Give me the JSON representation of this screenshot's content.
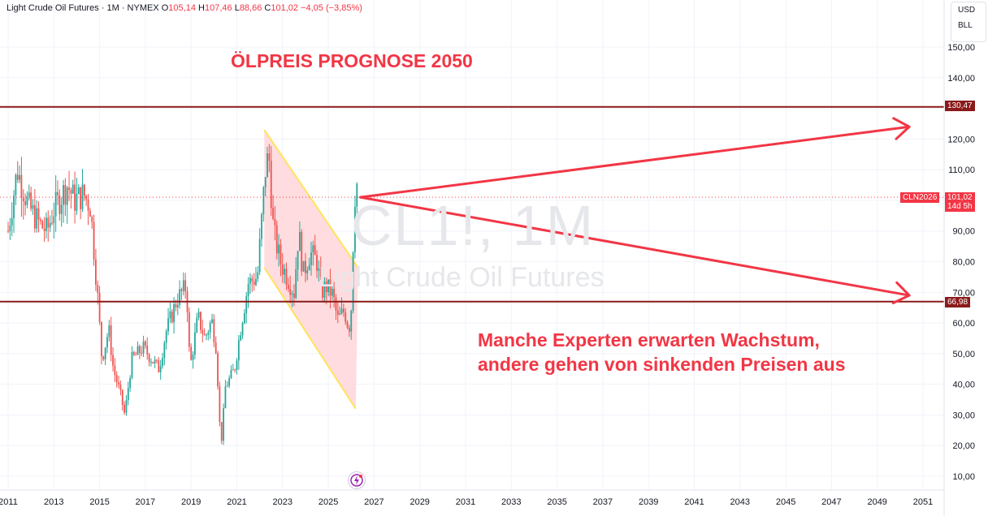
{
  "header": {
    "symbol_text": "Light Crude Oil Futures · 1M · NYMEX",
    "o_label": "O",
    "o_value": "105,14",
    "h_label": "H",
    "h_value": "107,46",
    "l_label": "L",
    "l_value": "88,66",
    "c_label": "C",
    "c_value": "101,02",
    "change": "−4,05 (−3,85%)"
  },
  "unit_box": {
    "currency": "USD",
    "unit": "BLL"
  },
  "watermark": {
    "symbol": "CL1!, 1M",
    "name": "Light Crude Oil Futures"
  },
  "annotations": {
    "title": "ÖLPREIS PROGNOSE 2050",
    "body_line1": "Manche Experten erwarten Wachstum,",
    "body_line2": "andere gehen von sinkenden Preisen aus"
  },
  "price_labels": {
    "upper_level": "130,47",
    "lower_level": "66,98",
    "contract": "CLN2026",
    "last_price": "101,02",
    "countdown": "14d 5h"
  },
  "colors": {
    "up": "#26a69a",
    "down": "#ef5350",
    "level_line": "#8b1a1a",
    "annotation": "#f23645",
    "channel_fill": "#ffd6d9",
    "channel_border": "#ffe45c"
  },
  "chart_data": {
    "type": "candlestick",
    "interval": "1M",
    "x_ticks": [
      "2011",
      "2013",
      "2015",
      "2017",
      "2019",
      "2021",
      "2023",
      "2025",
      "2027",
      "2029",
      "2031",
      "2033",
      "2035",
      "2037",
      "2039",
      "2041",
      "2043",
      "2045",
      "2047",
      "2049",
      "2051"
    ],
    "y_ticks": [
      10,
      20,
      30,
      40,
      50,
      60,
      70,
      80,
      90,
      100,
      110,
      120,
      130,
      140,
      150
    ],
    "y_ticks_labels": [
      "10,00",
      "20,00",
      "30,00",
      "40,00",
      "50,00",
      "60,00",
      "70,00",
      "80,00",
      "90,00",
      "110,00",
      "120,00",
      "140,00",
      "150,00"
    ],
    "ylim": [
      5,
      158
    ],
    "xlim": [
      2011.0,
      2052.0
    ],
    "horizontal_levels": [
      130.47,
      66.98
    ],
    "last_price": 101.02,
    "channel": {
      "top_start": [
        2022.2,
        123
      ],
      "top_end": [
        2026.3,
        78
      ],
      "bottom_start": [
        2022.2,
        78
      ],
      "bottom_end": [
        2026.2,
        32
      ]
    },
    "projection_arrows": [
      {
        "from": [
          2026.4,
          101.0
        ],
        "to": [
          2050.4,
          124.0
        ]
      },
      {
        "from": [
          2026.4,
          101.0
        ],
        "to": [
          2050.4,
          69.0
        ]
      }
    ],
    "closes_sampled": [
      [
        2011.0,
        90
      ],
      [
        2011.4,
        110
      ],
      [
        2011.9,
        98
      ],
      [
        2012.4,
        92
      ],
      [
        2012.7,
        90
      ],
      [
        2013.0,
        97
      ],
      [
        2013.6,
        105
      ],
      [
        2013.9,
        100
      ],
      [
        2014.3,
        102
      ],
      [
        2014.6,
        98
      ],
      [
        2014.9,
        70
      ],
      [
        2015.1,
        48
      ],
      [
        2015.4,
        58
      ],
      [
        2015.6,
        45
      ],
      [
        2015.9,
        37
      ],
      [
        2016.1,
        30
      ],
      [
        2016.4,
        48
      ],
      [
        2016.9,
        52
      ],
      [
        2017.3,
        48
      ],
      [
        2017.6,
        45
      ],
      [
        2017.9,
        57
      ],
      [
        2018.4,
        68
      ],
      [
        2018.8,
        72
      ],
      [
        2018.95,
        45
      ],
      [
        2019.3,
        62
      ],
      [
        2019.6,
        55
      ],
      [
        2019.9,
        61
      ],
      [
        2020.1,
        52
      ],
      [
        2020.3,
        19
      ],
      [
        2020.5,
        39
      ],
      [
        2020.9,
        45
      ],
      [
        2021.2,
        60
      ],
      [
        2021.5,
        73
      ],
      [
        2021.9,
        75
      ],
      [
        2022.1,
        95
      ],
      [
        2022.25,
        110
      ],
      [
        2022.4,
        115
      ],
      [
        2022.6,
        90
      ],
      [
        2022.9,
        80
      ],
      [
        2023.2,
        75
      ],
      [
        2023.5,
        70
      ],
      [
        2023.7,
        90
      ],
      [
        2023.9,
        76
      ],
      [
        2024.2,
        83
      ],
      [
        2024.5,
        80
      ],
      [
        2024.7,
        70
      ],
      [
        2024.9,
        72
      ],
      [
        2025.2,
        69
      ],
      [
        2025.4,
        61
      ],
      [
        2025.7,
        64
      ],
      [
        2025.9,
        58
      ],
      [
        2026.0,
        65
      ],
      [
        2026.1,
        90
      ],
      [
        2026.2,
        108
      ],
      [
        2026.33,
        101.02
      ]
    ]
  }
}
